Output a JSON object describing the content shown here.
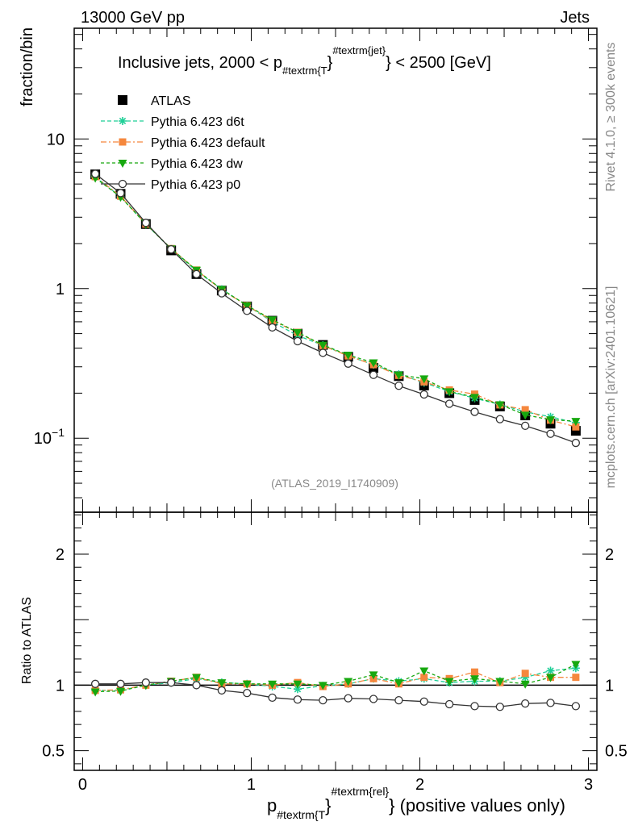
{
  "header": {
    "left": "13000 GeV pp",
    "right": "Jets"
  },
  "side": {
    "top": "Rivet 4.1.0, ≥ 300k events",
    "bottom": "mcplots.cern.ch [arXiv:2401.10621]"
  },
  "main_title": {
    "pre": "Inclusive jets, 2000 < p",
    "sub": "#textrm{T",
    "brace": "}",
    "sup": "#textrm{jet}",
    "post": "} < 2500 [GeV]"
  },
  "x_title": {
    "pre": "p",
    "sub": "#textrm{T",
    "brace": "}",
    "sup": "#textrm{rel}",
    "post": "} (positive values only)"
  },
  "y_title_top": "fraction/bin",
  "y_title_bottom": "Ratio to ATLAS",
  "watermark": "(ATLAS_2019_I1740909)",
  "colors": {
    "atlas": "#000000",
    "d6t": "#1fcf97",
    "default": "#f5873d",
    "dw": "#17a80f",
    "p0": "#333333"
  },
  "chart_data": [
    {
      "type": "scatter",
      "title": "Inclusive jets, 2000 < p#textrm{T}#textrm{jet}} < 2500 [GeV]",
      "xlabel": "p#textrm{T}#textrm{rel}} (positive values only)",
      "ylabel": "fraction/bin",
      "yscale": "log",
      "xlim": [
        -0.05,
        3.05
      ],
      "ylim": [
        0.032,
        55
      ],
      "y_ticks": [
        {
          "value": 0.1,
          "label": "10",
          "exp": "−1"
        },
        {
          "value": 1,
          "label": "1",
          "exp": ""
        },
        {
          "value": 10,
          "label": "10",
          "exp": ""
        }
      ],
      "x": [
        0.075,
        0.225,
        0.375,
        0.525,
        0.675,
        0.825,
        0.975,
        1.125,
        1.275,
        1.425,
        1.575,
        1.725,
        1.875,
        2.025,
        2.175,
        2.325,
        2.475,
        2.625,
        2.775,
        2.925
      ],
      "series": [
        {
          "name": "ATLAS",
          "key": "atlas",
          "marker": "square",
          "values": [
            5.8,
            4.3,
            2.7,
            1.8,
            1.25,
            0.97,
            0.76,
            0.61,
            0.5,
            0.42,
            0.35,
            0.295,
            0.26,
            0.225,
            0.2,
            0.18,
            0.163,
            0.142,
            0.125,
            0.112
          ]
        },
        {
          "name": "Pythia 6.423 d6t",
          "key": "d6t",
          "marker": "star",
          "values": [
            5.6,
            4.1,
            2.7,
            1.84,
            1.31,
            0.99,
            0.77,
            0.6,
            0.485,
            0.418,
            0.355,
            0.31,
            0.268,
            0.235,
            0.205,
            0.185,
            0.168,
            0.15,
            0.139,
            0.127
          ]
        },
        {
          "name": "Pythia 6.423 default",
          "key": "default",
          "marker": "fsquare",
          "values": [
            5.6,
            4.15,
            2.7,
            1.85,
            1.33,
            0.98,
            0.77,
            0.61,
            0.51,
            0.415,
            0.355,
            0.31,
            0.263,
            0.238,
            0.21,
            0.197,
            0.167,
            0.155,
            0.132,
            0.119
          ]
        },
        {
          "name": "Pythia 6.423 dw",
          "key": "dw",
          "marker": "tridown",
          "values": [
            5.5,
            4.1,
            2.7,
            1.85,
            1.33,
            0.99,
            0.77,
            0.62,
            0.51,
            0.42,
            0.36,
            0.32,
            0.265,
            0.25,
            0.205,
            0.188,
            0.168,
            0.143,
            0.133,
            0.13
          ]
        },
        {
          "name": "Pythia 6.423 p0",
          "key": "p0",
          "marker": "circle",
          "values": [
            5.85,
            4.35,
            2.75,
            1.83,
            1.25,
            0.93,
            0.71,
            0.55,
            0.445,
            0.372,
            0.315,
            0.265,
            0.224,
            0.196,
            0.17,
            0.15,
            0.134,
            0.121,
            0.107,
            0.093
          ]
        }
      ]
    },
    {
      "type": "scatter",
      "ylabel": "Ratio to ATLAS",
      "yscale": "linear",
      "xlim": [
        -0.05,
        3.05
      ],
      "ylim": [
        0.35,
        2.32
      ],
      "x_ticks": [
        {
          "value": 0,
          "label": "0"
        },
        {
          "value": 1,
          "label": "1"
        },
        {
          "value": 2,
          "label": "2"
        },
        {
          "value": 3,
          "label": "3"
        }
      ],
      "y_ticks": [
        {
          "value": 0.5,
          "label": "0.5"
        },
        {
          "value": 1,
          "label": "1"
        },
        {
          "value": 2,
          "label": "2"
        }
      ],
      "reference_line": 1,
      "x": [
        0.075,
        0.225,
        0.375,
        0.525,
        0.675,
        0.825,
        0.975,
        1.125,
        1.275,
        1.425,
        1.575,
        1.725,
        1.875,
        2.025,
        2.175,
        2.325,
        2.475,
        2.625,
        2.775,
        2.925
      ],
      "series": [
        {
          "name": "Pythia 6.423 d6t",
          "key": "d6t",
          "marker": "star",
          "values": [
            0.96,
            0.96,
            1.0,
            1.02,
            1.05,
            1.02,
            1.01,
            0.99,
            0.97,
            0.995,
            1.01,
            1.05,
            1.03,
            1.05,
            1.02,
            1.03,
            1.03,
            1.06,
            1.11,
            1.13
          ]
        },
        {
          "name": "Pythia 6.423 default",
          "key": "default",
          "marker": "fsquare",
          "values": [
            0.96,
            0.965,
            1.0,
            1.03,
            1.06,
            1.01,
            1.01,
            1.0,
            1.02,
            0.99,
            1.01,
            1.05,
            1.01,
            1.06,
            1.05,
            1.1,
            1.02,
            1.09,
            1.06,
            1.06
          ]
        },
        {
          "name": "Pythia 6.423 dw",
          "key": "dw",
          "marker": "tridown",
          "values": [
            0.95,
            0.955,
            1.0,
            1.03,
            1.06,
            1.02,
            1.01,
            1.01,
            1.01,
            1.0,
            1.03,
            1.08,
            1.02,
            1.11,
            1.03,
            1.05,
            1.03,
            1.01,
            1.06,
            1.16
          ]
        },
        {
          "name": "Pythia 6.423 p0",
          "key": "p0",
          "marker": "circle",
          "values": [
            1.01,
            1.01,
            1.02,
            1.02,
            1.0,
            0.96,
            0.94,
            0.905,
            0.89,
            0.885,
            0.9,
            0.895,
            0.885,
            0.875,
            0.855,
            0.84,
            0.835,
            0.86,
            0.865,
            0.84
          ]
        }
      ]
    }
  ]
}
